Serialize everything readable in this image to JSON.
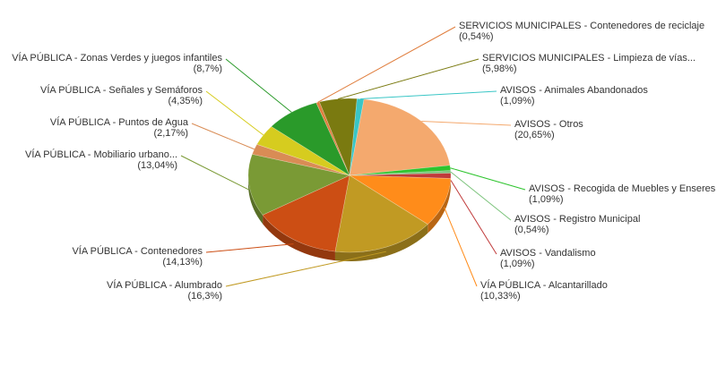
{
  "chart_data": {
    "type": "pie",
    "title": "",
    "series": [
      {
        "name": "",
        "categories": [
          "AVISOS - Otros",
          "AVISOS - Recogida de Muebles y Enseres",
          "AVISOS - Registro Municipal",
          "AVISOS - Vandalismo",
          "VÍA PÚBLICA - Alcantarillado",
          "VÍA PÚBLICA - Alumbrado",
          "VÍA PÚBLICA - Contenedores",
          "VÍA PÚBLICA - Mobiliario urbano...",
          "VÍA PÚBLICA - Puntos de Agua",
          "VÍA PÚBLICA - Señales y Semáforos",
          "VÍA PÚBLICA - Zonas Verdes y juegos infantiles",
          "SERVICIOS MUNICIPALES - Contenedores de reciclaje",
          "SERVICIOS MUNICIPALES - Limpieza de vías...",
          "AVISOS - Animales Abandonados"
        ],
        "values": [
          20.65,
          1.09,
          0.54,
          1.09,
          10.33,
          16.3,
          14.13,
          13.04,
          2.17,
          4.35,
          8.7,
          0.54,
          5.98,
          1.09
        ],
        "value_labels": [
          "(20,65%)",
          "(1,09%)",
          "(0,54%)",
          "(1,09%)",
          "(10,33%)",
          "(16,3%)",
          "(14,13%)",
          "(13,04%)",
          "(2,17%)",
          "(4,35%)",
          "(8,7%)",
          "(0,54%)",
          "(5,98%)",
          "(1,09%)"
        ],
        "colors": [
          "#F4A96E",
          "#2EC42E",
          "#7BC37B",
          "#C03A3A",
          "#FF8C1A",
          "#C19A23",
          "#CC4E14",
          "#7A9A35",
          "#D98C55",
          "#D6CC1F",
          "#2A9A2A",
          "#E07E3E",
          "#7A7A10",
          "#3AC6C6"
        ]
      }
    ],
    "legend": "none",
    "style": "3d-pie-with-leader-labels"
  }
}
